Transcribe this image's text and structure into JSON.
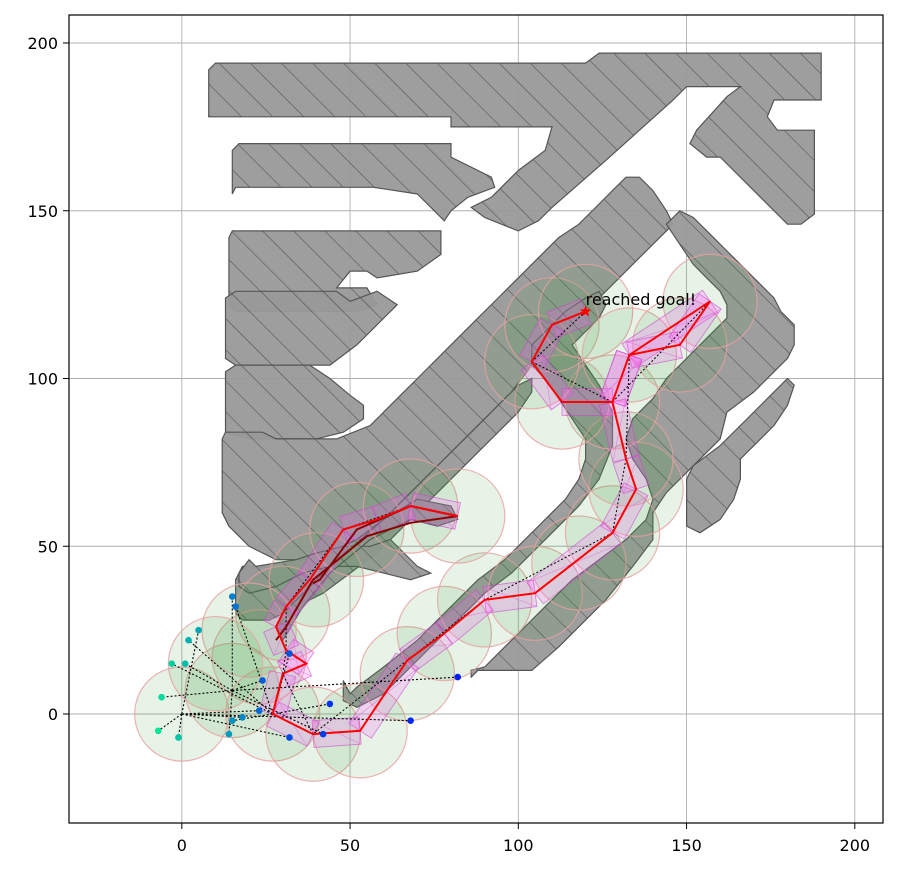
{
  "chart_data": {
    "type": "scatter",
    "title": "",
    "xlabel": "",
    "ylabel": "",
    "xlim": [
      -33,
      208
    ],
    "ylim": [
      -32,
      208
    ],
    "xticks": [
      0,
      50,
      100,
      150,
      200
    ],
    "yticks": [
      0,
      50,
      100,
      150,
      200
    ],
    "grid": true,
    "annotation": {
      "text": "reached goal!",
      "x": 120,
      "y": 121
    },
    "goal": {
      "x": 120,
      "y": 120
    },
    "colors": {
      "obstacle_fill": "#999999",
      "obstacle_edge": "#555555",
      "path": "#ff0000",
      "dark_path": "#8b0000",
      "disk_fill": "#3c9a3c",
      "disk_edge": "#e8a0a0",
      "corridor": "#ff66ff",
      "tree": "#000000"
    },
    "obstacles": [
      [
        [
          8,
          191
        ],
        [
          10,
          193
        ],
        [
          120,
          193
        ],
        [
          124,
          197
        ],
        [
          190,
          197
        ],
        [
          190,
          183
        ],
        [
          188,
          182
        ],
        [
          177,
          182
        ],
        [
          175,
          180
        ],
        [
          177,
          174
        ],
        [
          187,
          174
        ],
        [
          188,
          173
        ],
        [
          188,
          149
        ],
        [
          184,
          146
        ],
        [
          180,
          146
        ],
        [
          160,
          166
        ],
        [
          156,
          166
        ],
        [
          152,
          170
        ],
        [
          150,
          172
        ],
        [
          147,
          170
        ],
        [
          162,
          155
        ],
        [
          165,
          157
        ],
        [
          168,
          161
        ],
        [
          172,
          166
        ],
        [
          178,
          170
        ],
        [
          182,
          172
        ],
        [
          186,
          175
        ],
        [
          180,
          170
        ],
        [
          175,
          166
        ],
        [
          170,
          160
        ],
        [
          162,
          150
        ],
        [
          158,
          160
        ],
        [
          148,
          170
        ],
        [
          138,
          172
        ],
        [
          142,
          180
        ],
        [
          150,
          184
        ],
        [
          158,
          182
        ],
        [
          162,
          185
        ],
        [
          170,
          188
        ],
        [
          182,
          188
        ],
        [
          187,
          188
        ],
        [
          180,
          180
        ],
        [
          175,
          175
        ],
        [
          170,
          170
        ],
        [
          163,
          162
        ],
        [
          155,
          165
        ],
        [
          150,
          165
        ],
        [
          147,
          168
        ],
        [
          152,
          182
        ],
        [
          157,
          187
        ],
        [
          160,
          190
        ],
        [
          162,
          186
        ],
        [
          168,
          186
        ],
        [
          170,
          190
        ],
        [
          135,
          190
        ],
        [
          132,
          187
        ],
        [
          128,
          186
        ],
        [
          124,
          187
        ],
        [
          120,
          185
        ],
        [
          115,
          180
        ],
        [
          107,
          178
        ],
        [
          100,
          168
        ],
        [
          95,
          163
        ],
        [
          90,
          158
        ],
        [
          86,
          154
        ],
        [
          83,
          150
        ],
        [
          80,
          146
        ],
        [
          78,
          145
        ],
        [
          80,
          150
        ],
        [
          85,
          155
        ],
        [
          90,
          160
        ],
        [
          95,
          165
        ],
        [
          100,
          170
        ],
        [
          80,
          170
        ],
        [
          80,
          176
        ],
        [
          8,
          176
        ]
      ]
    ],
    "path_red": [
      [
        120,
        120
      ],
      [
        110,
        116
      ],
      [
        104,
        105
      ],
      [
        113,
        93
      ],
      [
        128,
        93
      ],
      [
        133,
        107
      ],
      [
        157,
        123
      ],
      [
        148,
        110
      ],
      [
        133,
        107
      ],
      [
        128,
        93
      ],
      [
        132,
        76
      ],
      [
        135,
        67
      ],
      [
        128,
        54
      ],
      [
        105,
        36
      ],
      [
        90,
        34
      ],
      [
        78,
        24
      ],
      [
        67,
        16
      ],
      [
        53,
        -5
      ],
      [
        39,
        -6
      ],
      [
        27,
        0
      ],
      [
        30,
        12
      ],
      [
        37,
        15
      ],
      [
        31,
        19
      ],
      [
        28,
        26
      ],
      [
        31,
        32
      ],
      [
        38,
        40
      ],
      [
        48,
        55
      ],
      [
        58,
        58
      ],
      [
        68,
        62
      ],
      [
        82,
        59
      ]
    ],
    "path_dark": [
      [
        39,
        39
      ],
      [
        41,
        40
      ],
      [
        52,
        55
      ],
      [
        68,
        62
      ],
      [
        82,
        59
      ],
      [
        68,
        57
      ],
      [
        55,
        53
      ],
      [
        39,
        40
      ],
      [
        31,
        26
      ],
      [
        28,
        22
      ]
    ],
    "disks": [
      [
        0,
        0
      ],
      [
        15,
        7
      ],
      [
        23,
        17
      ],
      [
        27,
        0
      ],
      [
        39,
        -6
      ],
      [
        53,
        -5
      ],
      [
        67,
        12
      ],
      [
        78,
        24
      ],
      [
        90,
        34
      ],
      [
        105,
        36
      ],
      [
        118,
        45
      ],
      [
        128,
        54
      ],
      [
        135,
        67
      ],
      [
        132,
        76
      ],
      [
        128,
        93
      ],
      [
        113,
        93
      ],
      [
        104,
        105
      ],
      [
        110,
        116
      ],
      [
        120,
        120
      ],
      [
        133,
        107
      ],
      [
        148,
        110
      ],
      [
        157,
        123
      ],
      [
        30,
        30
      ],
      [
        40,
        40
      ],
      [
        52,
        55
      ],
      [
        68,
        62
      ],
      [
        82,
        59
      ],
      [
        20,
        25
      ],
      [
        10,
        15
      ]
    ],
    "tree_points": [
      {
        "x": -7,
        "y": -5
      },
      {
        "x": -6,
        "y": 5
      },
      {
        "x": -3,
        "y": 15
      },
      {
        "x": -1,
        "y": -7
      },
      {
        "x": 1,
        "y": 15
      },
      {
        "x": 2,
        "y": 22
      },
      {
        "x": 5,
        "y": 25
      },
      {
        "x": 14,
        "y": -6
      },
      {
        "x": 15,
        "y": -2
      },
      {
        "x": 18,
        "y": -1
      },
      {
        "x": 15,
        "y": 35
      },
      {
        "x": 16,
        "y": 32
      },
      {
        "x": 23,
        "y": 1
      },
      {
        "x": 24,
        "y": 10
      },
      {
        "x": 32,
        "y": 18
      },
      {
        "x": 32,
        "y": -7
      },
      {
        "x": 42,
        "y": -6
      },
      {
        "x": 44,
        "y": 3
      },
      {
        "x": 68,
        "y": -2
      },
      {
        "x": 82,
        "y": 11
      }
    ]
  }
}
